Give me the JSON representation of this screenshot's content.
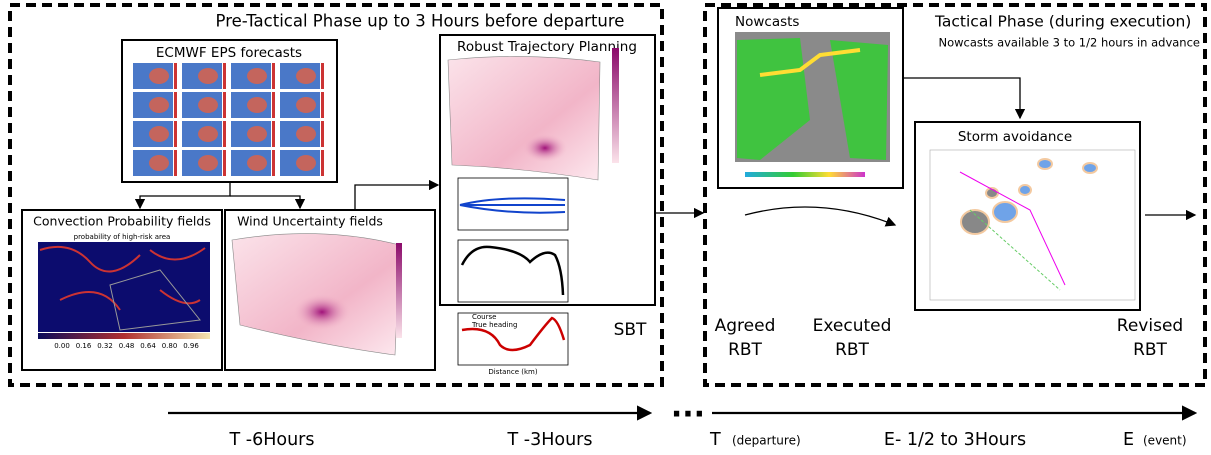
{
  "phases": [
    {
      "title": "Pre-Tactical Phase up to 3 Hours before departure"
    },
    {
      "title": "Tactical Phase (during execution)",
      "subtitle": "Nowcasts available 3 to 1/2 hours in advance"
    }
  ],
  "panels": {
    "ecmwf": {
      "title": "ECMWF EPS forecasts"
    },
    "convection": {
      "title": "Convection Probability fields",
      "caption": "probability of high-risk area",
      "colorbar": [
        "0.00",
        "0.16",
        "0.32",
        "0.48",
        "0.64",
        "0.80",
        "0.96"
      ]
    },
    "wind": {
      "title": "Wind Uncertainty fields"
    },
    "robust": {
      "title": "Robust Trajectory Planning",
      "x_label": "Distance (km)",
      "legend": [
        "Course",
        "True heading"
      ]
    },
    "nowcasts": {
      "title": "Nowcasts"
    },
    "storm": {
      "title": "Storm avoidance"
    }
  },
  "labels": {
    "sbt": "SBT",
    "agreed": [
      "Agreed",
      "RBT"
    ],
    "executed": [
      "Executed",
      "RBT"
    ],
    "revised": [
      "Revised",
      "RBT"
    ]
  },
  "timeline": {
    "ellipsis": "...",
    "t6": "T -6Hours",
    "t3": "T -3Hours",
    "t": "T",
    "t_note": "(departure)",
    "e_range": "E- 1/2 to 3Hours",
    "e": "E",
    "e_note": "(event)"
  }
}
